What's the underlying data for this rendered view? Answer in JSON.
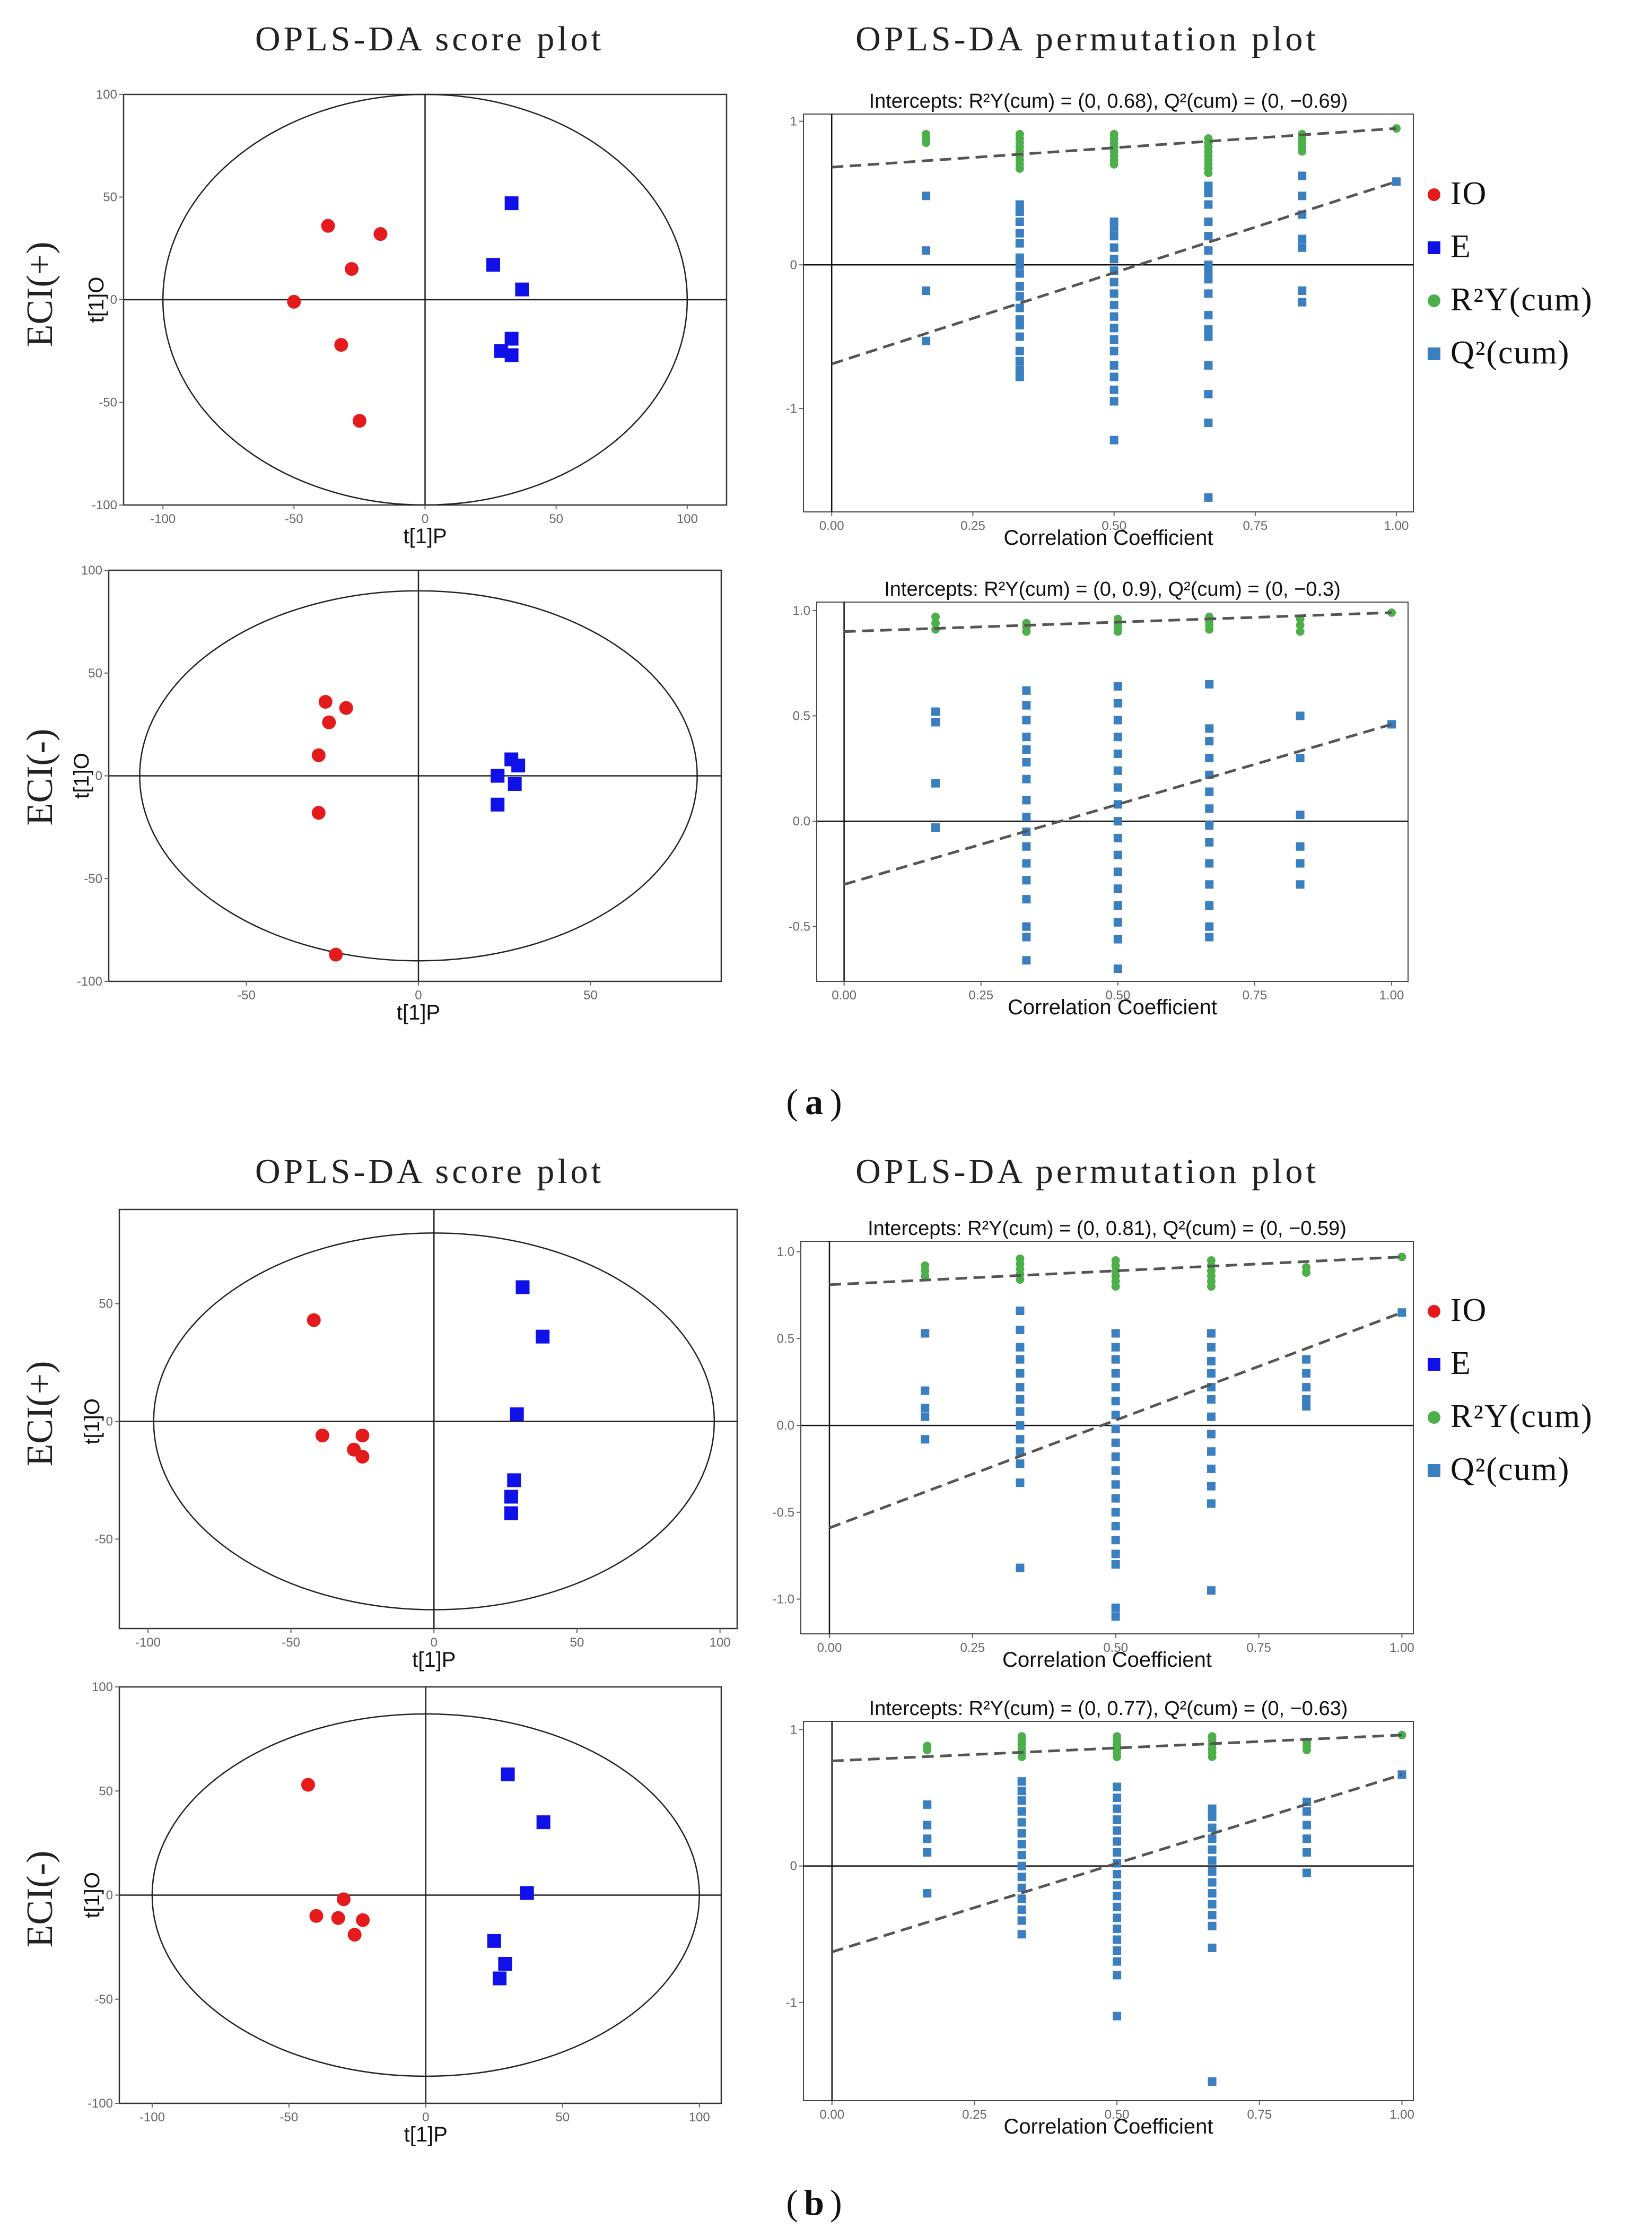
{
  "section_titles": {
    "score": "OPLS-DA score plot",
    "permutation": "OPLS-DA permutation plot"
  },
  "row_labels": {
    "pos": "ECI(+)",
    "neg": "ECI(-)"
  },
  "panel_labels": {
    "a": "a",
    "b": "b"
  },
  "legend": {
    "items": [
      {
        "label": "IO",
        "color": "#e41a1c",
        "shape": "circle"
      },
      {
        "label": "E",
        "color": "#1010e8",
        "shape": "square"
      },
      {
        "label": "R²Y(cum)",
        "color": "#4daf4a",
        "shape": "circle"
      },
      {
        "label": "Q²(cum)",
        "color": "#3a7fc0",
        "shape": "square"
      }
    ]
  },
  "colors": {
    "io": "#e41a1c",
    "e": "#1010e8",
    "r2": "#4daf4a",
    "q2": "#3a7fc0",
    "dash": "#555555",
    "axis": "#000000"
  },
  "chart_data": [
    {
      "id": "a-pos-score",
      "type": "scatter",
      "panel": "a",
      "mode": "ECI(+)",
      "xlabel": "t[1]P",
      "ylabel": "t[1]O",
      "xlim": [
        -115,
        115
      ],
      "ylim": [
        -100,
        100
      ],
      "xticks": [
        -100,
        -50,
        0,
        50,
        100
      ],
      "yticks": [
        100,
        50,
        0,
        -50,
        -100
      ],
      "ellipse": {
        "rx": 100,
        "ry": 100
      },
      "series": [
        {
          "name": "IO",
          "points": [
            [
              -37,
              36
            ],
            [
              -17,
              32
            ],
            [
              -28,
              15
            ],
            [
              -50,
              -1
            ],
            [
              -32,
              -22
            ],
            [
              -25,
              -59
            ]
          ]
        },
        {
          "name": "E",
          "points": [
            [
              33,
              47
            ],
            [
              26,
              17
            ],
            [
              37,
              5
            ],
            [
              33,
              -19
            ],
            [
              29,
              -25
            ],
            [
              33,
              -27
            ]
          ]
        }
      ]
    },
    {
      "id": "a-pos-perm",
      "type": "scatter",
      "panel": "a",
      "mode": "ECI(+)",
      "title": "Intercepts: R²Y(cum) = (0, 0.68), Q²(cum) = (0, −0.69)",
      "xlabel": "Correlation Coefficient",
      "ylabel": "",
      "xlim": [
        -0.05,
        1.03
      ],
      "ylim": [
        -1.72,
        1.05
      ],
      "xticks": [
        "0.00",
        "0.25",
        "0.50",
        "0.75",
        "1.00"
      ],
      "yticks": [
        1,
        0,
        -1
      ],
      "r2_line": [
        0.68,
        0.95
      ],
      "q2_line": [
        -0.69,
        0.58
      ],
      "r2": [
        {
          "x": 0.167,
          "values": [
            0.85,
            0.88,
            0.91
          ]
        },
        {
          "x": 0.333,
          "values": [
            0.67,
            0.7,
            0.73,
            0.76,
            0.79,
            0.82,
            0.85,
            0.88,
            0.91
          ]
        },
        {
          "x": 0.5,
          "values": [
            0.7,
            0.73,
            0.76,
            0.79,
            0.82,
            0.85,
            0.88,
            0.91
          ]
        },
        {
          "x": 0.667,
          "values": [
            0.64,
            0.67,
            0.7,
            0.73,
            0.76,
            0.79,
            0.82,
            0.85,
            0.88
          ]
        },
        {
          "x": 0.833,
          "values": [
            0.79,
            0.82,
            0.85,
            0.88,
            0.91
          ]
        },
        {
          "x": 1.0,
          "values": [
            0.95
          ]
        }
      ],
      "q2": [
        {
          "x": 0.167,
          "values": [
            0.48,
            0.1,
            -0.18,
            -0.53
          ]
        },
        {
          "x": 0.333,
          "values": [
            0.42,
            0.37,
            0.3,
            0.22,
            0.15,
            0.05,
            0.0,
            -0.06,
            -0.15,
            -0.22,
            -0.3,
            -0.38,
            -0.42,
            -0.5,
            -0.6,
            -0.67,
            -0.73,
            -0.78
          ]
        },
        {
          "x": 0.5,
          "values": [
            0.3,
            0.26,
            0.2,
            0.12,
            0.04,
            -0.04,
            -0.12,
            -0.2,
            -0.28,
            -0.36,
            -0.44,
            -0.52,
            -0.6,
            -0.7,
            -0.78,
            -0.87,
            -0.95,
            -1.22
          ]
        },
        {
          "x": 0.667,
          "values": [
            0.55,
            0.5,
            0.42,
            0.3,
            0.2,
            0.1,
            0.0,
            -0.05,
            -0.1,
            -0.2,
            -0.35,
            -0.45,
            -0.5,
            -0.7,
            -0.9,
            -1.1,
            -1.62
          ]
        },
        {
          "x": 0.833,
          "values": [
            0.62,
            0.48,
            0.35,
            0.18,
            0.12,
            -0.18,
            -0.26
          ]
        },
        {
          "x": 1.0,
          "values": [
            0.58
          ]
        }
      ]
    },
    {
      "id": "a-neg-score",
      "type": "scatter",
      "panel": "a",
      "mode": "ECI(-)",
      "xlabel": "t[1]P",
      "ylabel": "t[1]O",
      "xlim": [
        -90,
        88
      ],
      "ylim": [
        -100,
        100
      ],
      "xticks": [
        -50,
        0,
        50
      ],
      "yticks": [
        100,
        50,
        0,
        -50,
        -100
      ],
      "ellipse": {
        "rx": 81,
        "ry": 90
      },
      "series": [
        {
          "name": "IO",
          "points": [
            [
              -27,
              36
            ],
            [
              -21,
              33
            ],
            [
              -26,
              26
            ],
            [
              -29,
              10
            ],
            [
              -29,
              -18
            ],
            [
              -24,
              -87
            ]
          ]
        },
        {
          "name": "E",
          "points": [
            [
              27,
              8
            ],
            [
              29,
              5
            ],
            [
              23,
              0
            ],
            [
              28,
              -4
            ],
            [
              23,
              -14
            ]
          ]
        }
      ]
    },
    {
      "id": "a-neg-perm",
      "type": "scatter",
      "panel": "a",
      "mode": "ECI(-)",
      "title": "Intercepts: R²Y(cum) = (0, 0.9), Q²(cum) = (0, −0.3)",
      "xlabel": "Correlation Coefficient",
      "ylabel": "",
      "xlim": [
        -0.05,
        1.03
      ],
      "ylim": [
        -0.76,
        1.04
      ],
      "xticks": [
        "0.00",
        "0.25",
        "0.50",
        "0.75",
        "1.00"
      ],
      "yticks": [
        "1.0",
        "0.5",
        "0.0",
        "-0.5"
      ],
      "r2_line": [
        0.9,
        0.99
      ],
      "q2_line": [
        -0.3,
        0.46
      ],
      "r2": [
        {
          "x": 0.167,
          "values": [
            0.91,
            0.94,
            0.97
          ]
        },
        {
          "x": 0.333,
          "values": [
            0.9,
            0.92,
            0.94
          ]
        },
        {
          "x": 0.5,
          "values": [
            0.9,
            0.92,
            0.94,
            0.96
          ]
        },
        {
          "x": 0.667,
          "values": [
            0.91,
            0.93,
            0.95,
            0.97
          ]
        },
        {
          "x": 0.833,
          "values": [
            0.9,
            0.93,
            0.96
          ]
        },
        {
          "x": 1.0,
          "values": [
            0.99
          ]
        }
      ],
      "q2": [
        {
          "x": 0.167,
          "values": [
            0.52,
            0.47,
            0.18,
            -0.03
          ]
        },
        {
          "x": 0.333,
          "values": [
            0.62,
            0.55,
            0.48,
            0.4,
            0.34,
            0.28,
            0.2,
            0.1,
            0.02,
            -0.05,
            -0.12,
            -0.2,
            -0.28,
            -0.37,
            -0.5,
            -0.55,
            -0.66
          ]
        },
        {
          "x": 0.5,
          "values": [
            0.64,
            0.56,
            0.48,
            0.4,
            0.32,
            0.24,
            0.16,
            0.08,
            0.0,
            -0.08,
            -0.16,
            -0.24,
            -0.32,
            -0.4,
            -0.48,
            -0.56,
            -0.7
          ]
        },
        {
          "x": 0.667,
          "values": [
            0.65,
            0.44,
            0.38,
            0.3,
            0.22,
            0.14,
            0.06,
            -0.02,
            -0.1,
            -0.2,
            -0.3,
            -0.4,
            -0.5,
            -0.55
          ]
        },
        {
          "x": 0.833,
          "values": [
            0.5,
            0.3,
            0.03,
            -0.12,
            -0.2,
            -0.3
          ]
        },
        {
          "x": 1.0,
          "values": [
            0.46
          ]
        }
      ]
    },
    {
      "id": "b-pos-score",
      "type": "scatter",
      "panel": "b",
      "mode": "ECI(+)",
      "xlabel": "t[1]P",
      "ylabel": "t[1]O",
      "xlim": [
        -110,
        106
      ],
      "ylim": [
        -88,
        90
      ],
      "xticks": [
        -100,
        -50,
        0,
        50,
        100
      ],
      "yticks": [
        50,
        0,
        -50
      ],
      "ellipse": {
        "rx": 98,
        "ry": 80
      },
      "series": [
        {
          "name": "IO",
          "points": [
            [
              -42,
              43
            ],
            [
              -39,
              -6
            ],
            [
              -25,
              -6
            ],
            [
              -28,
              -12
            ],
            [
              -25,
              -15
            ]
          ]
        },
        {
          "name": "E",
          "points": [
            [
              31,
              57
            ],
            [
              38,
              36
            ],
            [
              29,
              3
            ],
            [
              28,
              -25
            ],
            [
              27,
              -32
            ],
            [
              27,
              -39
            ]
          ]
        }
      ]
    },
    {
      "id": "b-pos-perm",
      "type": "scatter",
      "panel": "b",
      "mode": "ECI(+)",
      "title": "Intercepts: R²Y(cum) = (0, 0.81), Q²(cum) = (0, −0.59)",
      "xlabel": "Correlation Coefficient",
      "ylabel": "",
      "xlim": [
        -0.05,
        1.02
      ],
      "ylim": [
        -1.2,
        1.06
      ],
      "xticks": [
        "0.00",
        "0.25",
        "0.50",
        "0.75",
        "1.00"
      ],
      "yticks": [
        "1.0",
        "0.5",
        "0.0",
        "-0.5",
        "-1.0"
      ],
      "r2_line": [
        0.81,
        0.97
      ],
      "q2_line": [
        -0.59,
        0.65
      ],
      "r2": [
        {
          "x": 0.167,
          "values": [
            0.86,
            0.89,
            0.92
          ]
        },
        {
          "x": 0.333,
          "values": [
            0.84,
            0.87,
            0.9,
            0.93,
            0.96
          ]
        },
        {
          "x": 0.5,
          "values": [
            0.8,
            0.83,
            0.86,
            0.89,
            0.92,
            0.95
          ]
        },
        {
          "x": 0.667,
          "values": [
            0.8,
            0.83,
            0.86,
            0.89,
            0.92,
            0.95
          ]
        },
        {
          "x": 0.833,
          "values": [
            0.88,
            0.91
          ]
        },
        {
          "x": 1.0,
          "values": [
            0.97
          ]
        }
      ],
      "q2": [
        {
          "x": 0.167,
          "values": [
            0.53,
            0.2,
            0.1,
            0.05,
            -0.08
          ]
        },
        {
          "x": 0.333,
          "values": [
            0.66,
            0.55,
            0.45,
            0.38,
            0.3,
            0.22,
            0.15,
            0.08,
            0.0,
            -0.08,
            -0.15,
            -0.22,
            -0.33,
            -0.82
          ]
        },
        {
          "x": 0.5,
          "values": [
            0.53,
            0.45,
            0.38,
            0.3,
            0.22,
            0.14,
            0.06,
            -0.02,
            -0.1,
            -0.18,
            -0.26,
            -0.34,
            -0.42,
            -0.5,
            -0.58,
            -0.66,
            -0.74,
            -0.8,
            -1.05,
            -1.1
          ]
        },
        {
          "x": 0.667,
          "values": [
            0.53,
            0.45,
            0.37,
            0.3,
            0.22,
            0.15,
            0.05,
            -0.05,
            -0.15,
            -0.25,
            -0.35,
            -0.45,
            -0.95
          ]
        },
        {
          "x": 0.833,
          "values": [
            0.38,
            0.3,
            0.22,
            0.15,
            0.11
          ]
        },
        {
          "x": 1.0,
          "values": [
            0.65
          ]
        }
      ]
    },
    {
      "id": "b-neg-score",
      "type": "scatter",
      "panel": "b",
      "mode": "ECI(-)",
      "xlabel": "t[1]P",
      "ylabel": "t[1]O",
      "xlim": [
        -112,
        108
      ],
      "ylim": [
        -100,
        100
      ],
      "xticks": [
        -100,
        -50,
        0,
        50,
        100
      ],
      "yticks": [
        100,
        50,
        0,
        -50,
        -100
      ],
      "ellipse": {
        "rx": 100,
        "ry": 87
      },
      "series": [
        {
          "name": "IO",
          "points": [
            [
              -43,
              53
            ],
            [
              -40,
              -10
            ],
            [
              -32,
              -11
            ],
            [
              -30,
              -2
            ],
            [
              -26,
              -19
            ],
            [
              -23,
              -12
            ]
          ]
        },
        {
          "name": "E",
          "points": [
            [
              30,
              58
            ],
            [
              43,
              35
            ],
            [
              37,
              1
            ],
            [
              25,
              -22
            ],
            [
              29,
              -33
            ],
            [
              27,
              -40
            ]
          ]
        }
      ]
    },
    {
      "id": "b-neg-perm",
      "type": "scatter",
      "panel": "b",
      "mode": "ECI(-)",
      "title": "Intercepts: R²Y(cum) = (0, 0.77), Q²(cum) = (0, −0.63)",
      "xlabel": "Correlation Coefficient",
      "ylabel": "",
      "xlim": [
        -0.05,
        1.02
      ],
      "ylim": [
        -1.72,
        1.06
      ],
      "xticks": [
        "0.00",
        "0.25",
        "0.50",
        "0.75",
        "1.00"
      ],
      "yticks": [
        1,
        0,
        -1
      ],
      "r2_line": [
        0.77,
        0.96
      ],
      "q2_line": [
        -0.63,
        0.67
      ],
      "r2": [
        {
          "x": 0.167,
          "values": [
            0.85,
            0.88
          ]
        },
        {
          "x": 0.333,
          "values": [
            0.8,
            0.83,
            0.86,
            0.89,
            0.92,
            0.95
          ]
        },
        {
          "x": 0.5,
          "values": [
            0.8,
            0.83,
            0.86,
            0.89,
            0.92,
            0.95
          ]
        },
        {
          "x": 0.667,
          "values": [
            0.8,
            0.83,
            0.86,
            0.89,
            0.92,
            0.95
          ]
        },
        {
          "x": 0.833,
          "values": [
            0.85,
            0.88,
            0.91
          ]
        },
        {
          "x": 1.0,
          "values": [
            0.96
          ]
        }
      ],
      "q2": [
        {
          "x": 0.167,
          "values": [
            0.45,
            0.3,
            0.2,
            0.1,
            -0.2
          ]
        },
        {
          "x": 0.333,
          "values": [
            0.62,
            0.55,
            0.48,
            0.4,
            0.32,
            0.24,
            0.16,
            0.08,
            0.0,
            -0.08,
            -0.16,
            -0.24,
            -0.32,
            -0.4,
            -0.5
          ]
        },
        {
          "x": 0.5,
          "values": [
            0.58,
            0.5,
            0.42,
            0.34,
            0.26,
            0.18,
            0.1,
            0.02,
            -0.06,
            -0.14,
            -0.22,
            -0.3,
            -0.38,
            -0.46,
            -0.54,
            -0.62,
            -0.7,
            -0.8,
            -1.1
          ]
        },
        {
          "x": 0.667,
          "values": [
            0.42,
            0.36,
            0.28,
            0.2,
            0.12,
            0.04,
            -0.04,
            -0.12,
            -0.2,
            -0.28,
            -0.36,
            -0.44,
            -0.6,
            -1.58
          ]
        },
        {
          "x": 0.833,
          "values": [
            0.47,
            0.4,
            0.3,
            0.2,
            0.1,
            -0.05
          ]
        },
        {
          "x": 1.0,
          "values": [
            0.67
          ]
        }
      ]
    }
  ]
}
